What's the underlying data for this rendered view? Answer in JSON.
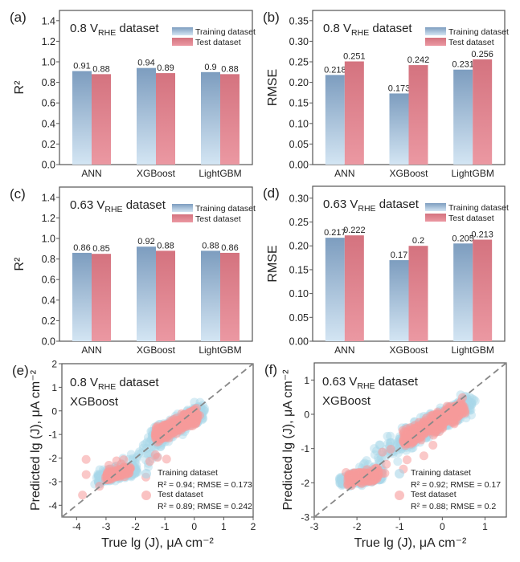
{
  "legend_labels": {
    "train": "Training dataset",
    "test": "Test dataset"
  },
  "colors": {
    "train_top": "#7d9dbf",
    "train_bottom": "#d3e5f3",
    "test_top": "#d4737f",
    "test_bottom": "#eb98a2",
    "scatter_train": "#a9d6e8",
    "scatter_test": "#f69a9a",
    "diagonal": "#888888"
  },
  "chart_data": [
    {
      "panel": "(a)",
      "type": "bar",
      "title": {
        "main": "0.8 V",
        "sub": "RHE",
        "rest": " dataset"
      },
      "ylabel": "R²",
      "ylim": [
        0,
        1.5
      ],
      "yticks": [
        "0.0",
        "0.2",
        "0.4",
        "0.6",
        "0.8",
        "1.0",
        "1.2",
        "1.4"
      ],
      "ytick_values": [
        0,
        0.2,
        0.4,
        0.6,
        0.8,
        1.0,
        1.2,
        1.4
      ],
      "categories": [
        "ANN",
        "XGBoost",
        "LightGBM"
      ],
      "series": [
        {
          "name": "Training dataset",
          "values": [
            0.91,
            0.94,
            0.9
          ],
          "labels": [
            "0.91",
            "0.94",
            "0.9"
          ]
        },
        {
          "name": "Test dataset",
          "values": [
            0.88,
            0.89,
            0.88
          ],
          "labels": [
            "0.88",
            "0.89",
            "0.88"
          ]
        }
      ],
      "legend": "top-right"
    },
    {
      "panel": "(b)",
      "type": "bar",
      "title": {
        "main": "0.8 V",
        "sub": "RHE",
        "rest": " dataset"
      },
      "ylabel": "RMSE",
      "ylim": [
        0,
        0.375
      ],
      "yticks": [
        "0.00",
        "0.05",
        "0.10",
        "0.15",
        "0.20",
        "0.25",
        "0.30",
        "0.35"
      ],
      "ytick_values": [
        0,
        0.05,
        0.1,
        0.15,
        0.2,
        0.25,
        0.3,
        0.35
      ],
      "categories": [
        "ANN",
        "XGBoost",
        "LightGBM"
      ],
      "series": [
        {
          "name": "Training dataset",
          "values": [
            0.218,
            0.173,
            0.231
          ],
          "labels": [
            "0.218",
            "0.173",
            "0.231"
          ]
        },
        {
          "name": "Test dataset",
          "values": [
            0.251,
            0.242,
            0.256
          ],
          "labels": [
            "0.251",
            "0.242",
            "0.256"
          ]
        }
      ],
      "legend": "top-right"
    },
    {
      "panel": "(c)",
      "type": "bar",
      "title": {
        "main": "0.63 V",
        "sub": "RHE",
        "rest": " dataset"
      },
      "ylabel": "R²",
      "ylim": [
        0,
        1.5
      ],
      "yticks": [
        "0.0",
        "0.2",
        "0.4",
        "0.6",
        "0.8",
        "1.0",
        "1.2",
        "1.4"
      ],
      "ytick_values": [
        0,
        0.2,
        0.4,
        0.6,
        0.8,
        1.0,
        1.2,
        1.4
      ],
      "categories": [
        "ANN",
        "XGBoost",
        "LightGBM"
      ],
      "series": [
        {
          "name": "Training dataset",
          "values": [
            0.86,
            0.92,
            0.88
          ],
          "labels": [
            "0.86",
            "0.92",
            "0.88"
          ]
        },
        {
          "name": "Test dataset",
          "values": [
            0.85,
            0.88,
            0.86
          ],
          "labels": [
            "0.85",
            "0.88",
            "0.86"
          ]
        }
      ],
      "legend": "top-right"
    },
    {
      "panel": "(d)",
      "type": "bar",
      "title": {
        "main": "0.63 V",
        "sub": "RHE",
        "rest": " dataset"
      },
      "ylabel": "RMSE",
      "ylim": [
        0,
        0.325
      ],
      "yticks": [
        "0.00",
        "0.05",
        "0.10",
        "0.15",
        "0.20",
        "0.25",
        "0.30"
      ],
      "ytick_values": [
        0,
        0.05,
        0.1,
        0.15,
        0.2,
        0.25,
        0.3
      ],
      "categories": [
        "ANN",
        "XGBoost",
        "LightGBM"
      ],
      "series": [
        {
          "name": "Training dataset",
          "values": [
            0.217,
            0.17,
            0.205
          ],
          "labels": [
            "0.217",
            "0.17",
            "0.205"
          ]
        },
        {
          "name": "Test dataset",
          "values": [
            0.222,
            0.2,
            0.213
          ],
          "labels": [
            "0.222",
            "0.2",
            "0.213"
          ]
        }
      ],
      "legend": "top-right"
    },
    {
      "panel": "(e)",
      "type": "scatter",
      "title": {
        "main": "0.8 V",
        "sub": "RHE",
        "rest": " dataset"
      },
      "model": "XGBoost",
      "xlabel": "True lg (J), μA cm⁻²",
      "ylabel": "Predicted lg (J), μA cm⁻²",
      "xlim": [
        -4.5,
        2
      ],
      "ylim": [
        -4.5,
        2
      ],
      "xticks": [
        -4,
        -3,
        -2,
        -1,
        0,
        1,
        2
      ],
      "yticks": [
        -4,
        -3,
        -2,
        -1,
        0,
        1,
        2
      ],
      "diagonal": "y = x",
      "legend_stats": {
        "train": "R² = 0.94; RMSE = 0.173",
        "test": "R² = 0.89; RMSE = 0.242"
      },
      "clusters": {
        "train": [
          {
            "n": 500,
            "x": [
              -1.4,
              0.25
            ],
            "y": [
              -1.15,
              0.0
            ],
            "spread": 0.18
          },
          {
            "n": 220,
            "x": [
              -3.3,
              -2.0
            ],
            "y": [
              -2.85,
              -2.45
            ],
            "spread": 0.14
          },
          {
            "n": 40,
            "x": [
              -2.3,
              -1.2
            ],
            "y": [
              -2.3,
              -1.4
            ],
            "spread": 0.3
          }
        ],
        "test": [
          {
            "n": 380,
            "x": [
              -1.3,
              0.1
            ],
            "y": [
              -1.05,
              -0.2
            ],
            "spread": 0.14
          },
          {
            "n": 160,
            "x": [
              -3.0,
              -2.2
            ],
            "y": [
              -2.75,
              -2.5
            ],
            "spread": 0.1
          },
          {
            "n": 14,
            "x": [
              -3.7,
              -1.0
            ],
            "y": [
              -2.4,
              -1.8
            ],
            "spread": 0.5
          }
        ]
      }
    },
    {
      "panel": "(f)",
      "type": "scatter",
      "title": {
        "main": "0.63 V",
        "sub": "RHE",
        "rest": " dataset"
      },
      "model": "XGBoost",
      "xlabel": "True lg (J), μA cm⁻²",
      "ylabel": "Predicted lg (J), μA cm⁻²",
      "xlim": [
        -3,
        1.5
      ],
      "ylim": [
        -3,
        1.5
      ],
      "xticks": [
        -3,
        -2,
        -1,
        0,
        1
      ],
      "yticks": [
        -3,
        -2,
        -1,
        0,
        1
      ],
      "diagonal": "y = x",
      "legend_stats": {
        "train": "R² = 0.92; RMSE = 0.17",
        "test": "R² = 0.88; RMSE = 0.2"
      },
      "clusters": {
        "train": [
          {
            "n": 550,
            "x": [
              -1.0,
              0.65
            ],
            "y": [
              -0.8,
              0.3
            ],
            "spread": 0.14
          },
          {
            "n": 200,
            "x": [
              -2.4,
              -1.4
            ],
            "y": [
              -1.95,
              -1.75
            ],
            "spread": 0.1
          },
          {
            "n": 50,
            "x": [
              -1.9,
              -0.9
            ],
            "y": [
              -1.6,
              -0.8
            ],
            "spread": 0.25
          }
        ],
        "test": [
          {
            "n": 420,
            "x": [
              -0.9,
              0.5
            ],
            "y": [
              -0.75,
              0.2
            ],
            "spread": 0.12
          },
          {
            "n": 160,
            "x": [
              -2.2,
              -1.5
            ],
            "y": [
              -1.9,
              -1.75
            ],
            "spread": 0.09
          },
          {
            "n": 12,
            "x": [
              -1.6,
              -0.4
            ],
            "y": [
              -1.4,
              -1.0
            ],
            "spread": 0.3
          }
        ]
      }
    }
  ]
}
